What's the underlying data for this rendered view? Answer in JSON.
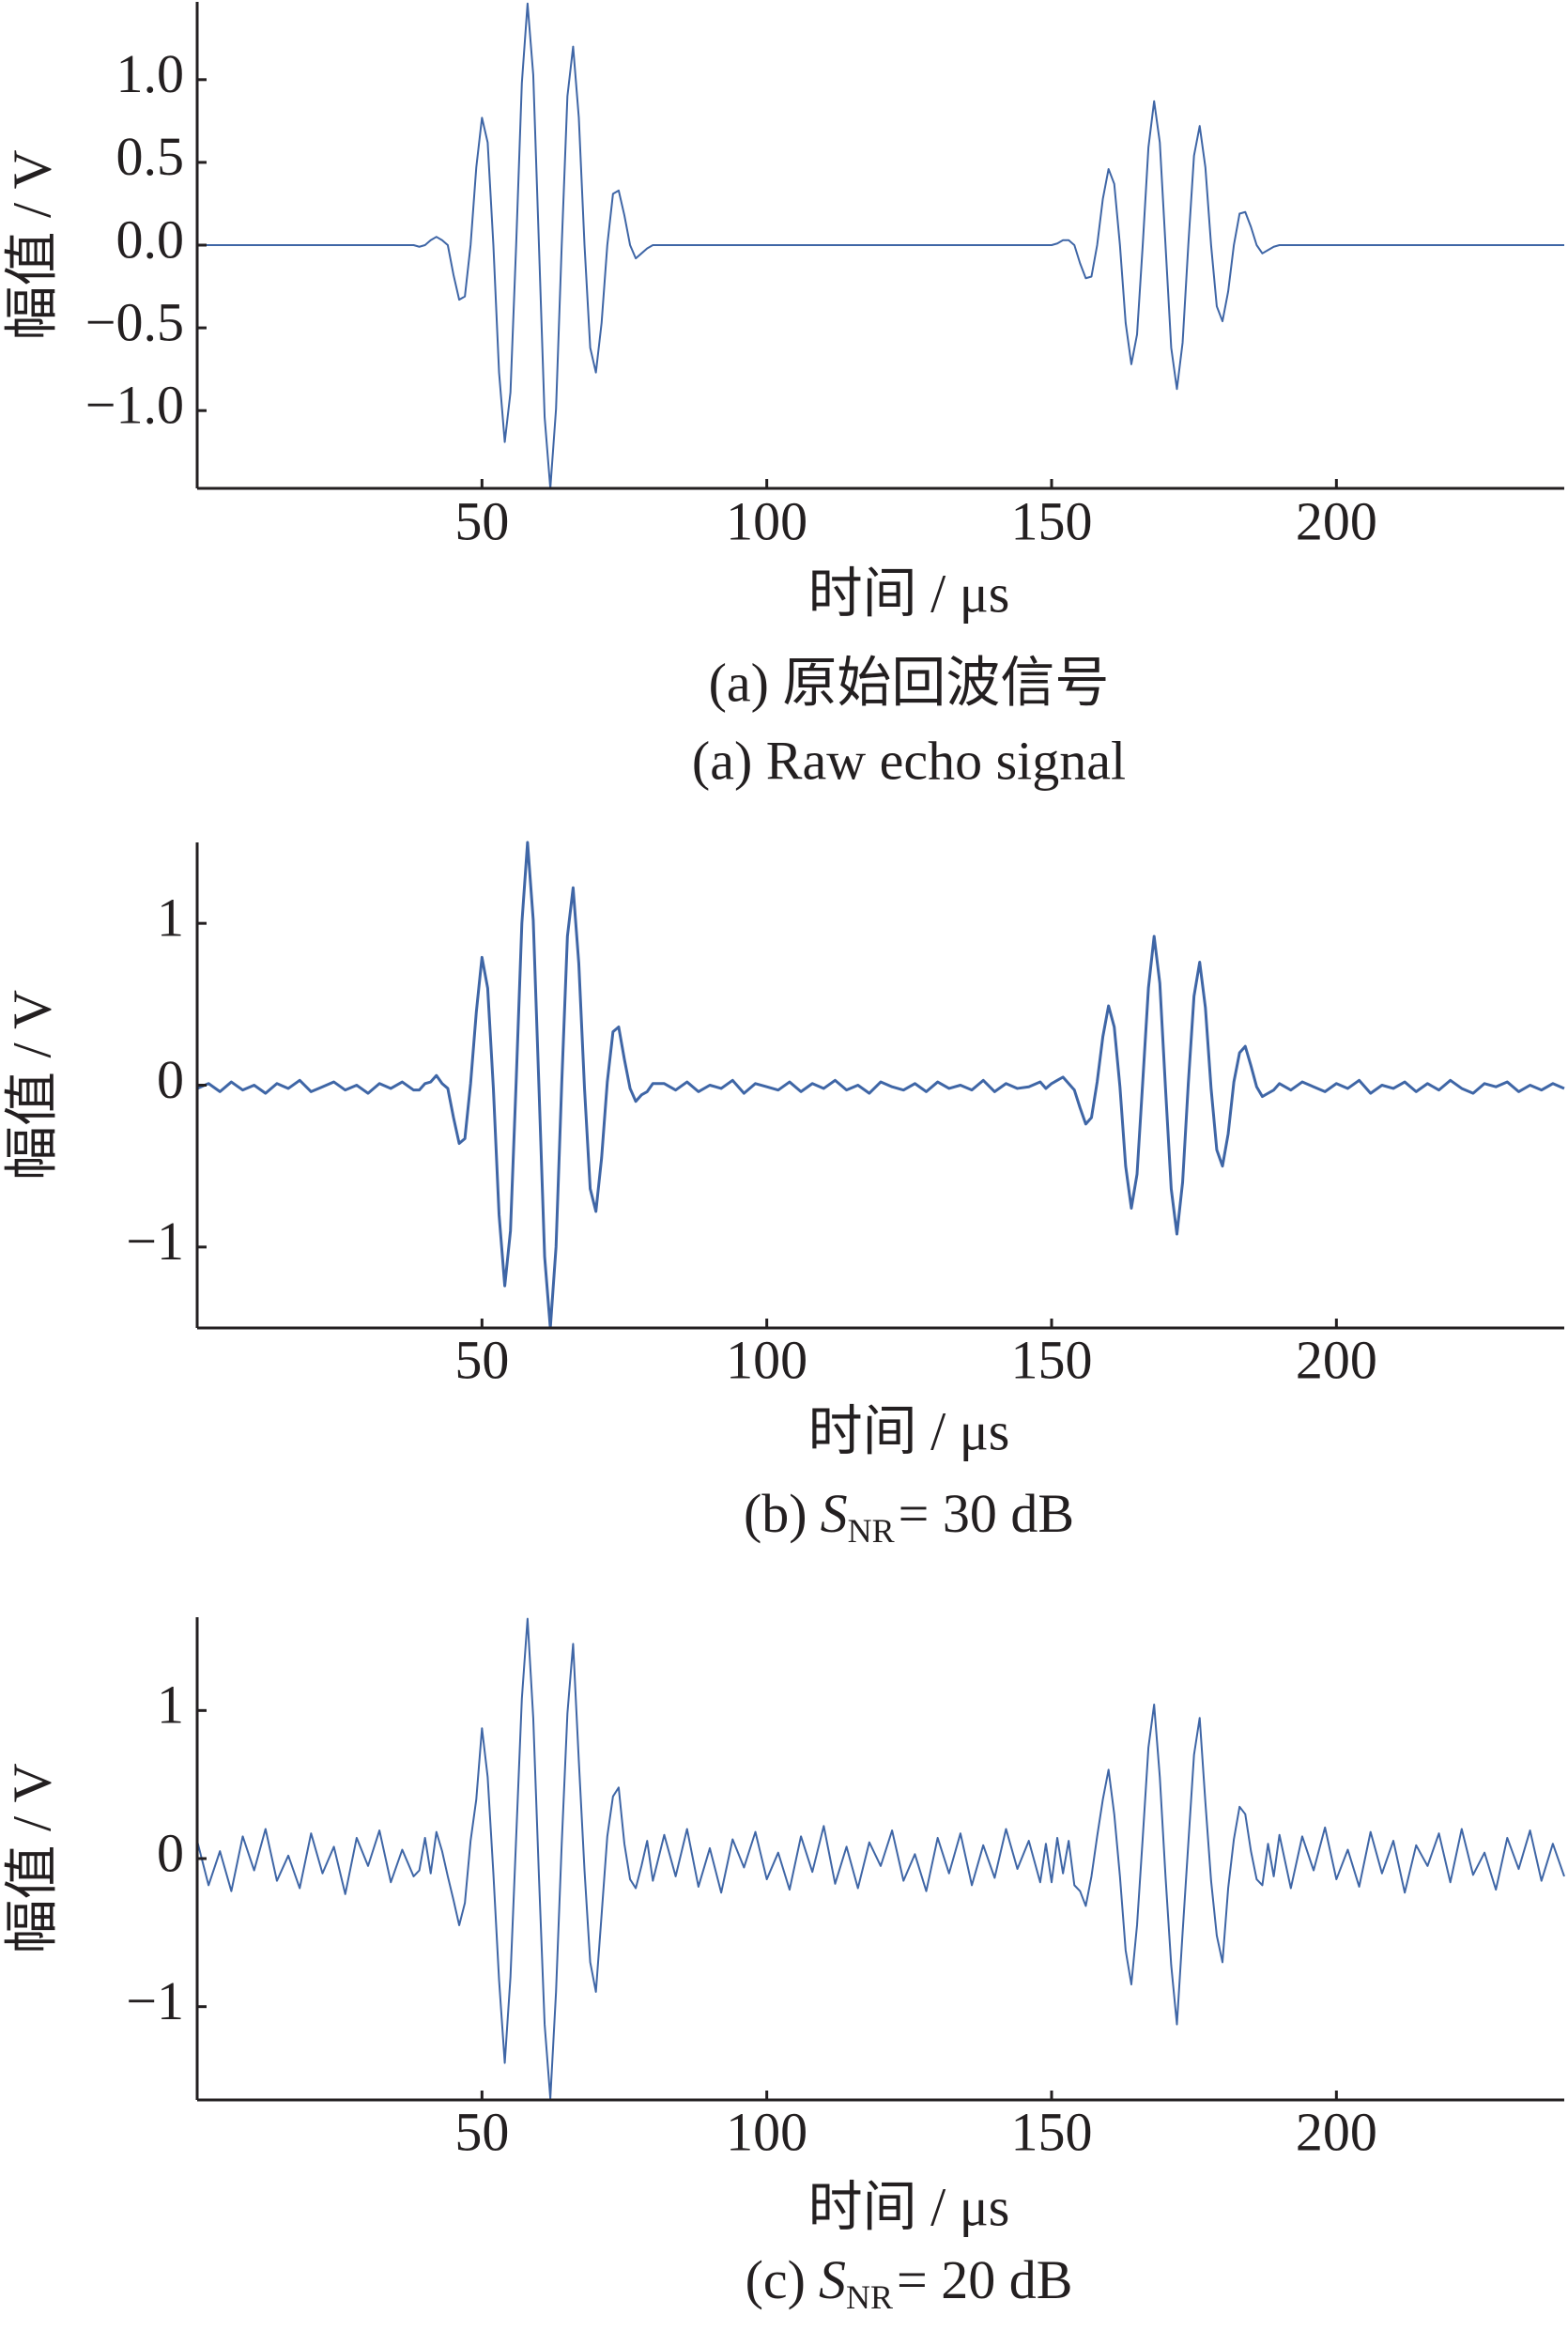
{
  "chart_data": [
    {
      "type": "line",
      "color": "#3f66a6",
      "line_width": 2,
      "y_label": "幅值 / V",
      "x_label": "时间 / μs",
      "caption_lines": [
        "(a) 原始回波信号",
        "(a) Raw echo signal"
      ],
      "xlim": [
        0,
        240
      ],
      "xticks": [
        50,
        100,
        150,
        200
      ],
      "ylim": [
        -1.47,
        1.47
      ],
      "yticks": [
        {
          "value": -1.0,
          "label": "−1.0"
        },
        {
          "value": -0.5,
          "label": "−0.5"
        },
        {
          "value": 0,
          "label": "0.0"
        },
        0.5,
        {
          "value": 1.0,
          "label": "1.0"
        }
      ],
      "x": [
        0,
        2,
        4,
        6,
        8,
        10,
        12,
        14,
        16,
        18,
        20,
        22,
        24,
        26,
        28,
        30,
        32,
        34,
        36,
        38,
        39,
        40,
        41,
        42,
        43,
        44,
        45,
        46,
        47,
        48,
        49,
        50,
        51,
        52,
        53,
        54,
        55,
        56,
        57,
        58,
        59,
        60,
        61,
        62,
        63,
        64,
        65,
        66,
        67,
        68,
        69,
        70,
        71,
        72,
        73,
        74,
        75,
        76,
        77,
        78,
        79,
        80,
        82,
        84,
        86,
        88,
        90,
        92,
        94,
        96,
        98,
        100,
        102,
        104,
        106,
        108,
        110,
        112,
        114,
        116,
        118,
        120,
        122,
        124,
        126,
        128,
        130,
        132,
        134,
        136,
        138,
        140,
        142,
        144,
        146,
        148,
        149,
        150,
        151,
        152,
        153,
        154,
        155,
        156,
        157,
        158,
        159,
        160,
        161,
        162,
        163,
        164,
        165,
        166,
        167,
        168,
        169,
        170,
        171,
        172,
        173,
        174,
        175,
        176,
        177,
        178,
        179,
        180,
        181,
        182,
        183,
        184,
        185,
        186,
        187,
        188,
        189,
        190,
        192,
        194,
        196,
        198,
        200,
        202,
        204,
        206,
        208,
        210,
        212,
        214,
        216,
        218,
        220,
        222,
        224,
        226,
        228,
        230,
        232,
        234,
        236,
        238,
        240
      ],
      "values": [
        0,
        0,
        0,
        0,
        0,
        0,
        0,
        0,
        0,
        0,
        0,
        0,
        0,
        0,
        0,
        0,
        0,
        0,
        0,
        0,
        -0.01,
        0,
        0.03,
        0.05,
        0.03,
        0,
        -0.18,
        -0.33,
        -0.31,
        0,
        0.47,
        0.77,
        0.62,
        0,
        -0.77,
        -1.19,
        -0.89,
        0,
        0.98,
        1.46,
        1.03,
        0,
        -1.04,
        -1.47,
        -0.99,
        0,
        0.9,
        1.2,
        0.77,
        0,
        -0.62,
        -0.77,
        -0.47,
        0,
        0.31,
        0.33,
        0.18,
        0,
        -0.08,
        -0.05,
        -0.02,
        0,
        0,
        0,
        0,
        0,
        0,
        0,
        0,
        0,
        0,
        0,
        0,
        0,
        0,
        0,
        0,
        0,
        0,
        0,
        0,
        0,
        0,
        0,
        0,
        0,
        0,
        0,
        0,
        0,
        0,
        0,
        0,
        0,
        0,
        0,
        0,
        0,
        0.01,
        0.03,
        0.03,
        0,
        -0.11,
        -0.2,
        -0.19,
        0,
        0.28,
        0.46,
        0.37,
        0,
        -0.47,
        -0.72,
        -0.54,
        0,
        0.59,
        0.87,
        0.62,
        0,
        -0.62,
        -0.87,
        -0.59,
        0,
        0.54,
        0.72,
        0.47,
        0,
        -0.37,
        -0.46,
        -0.28,
        0,
        0.19,
        0.2,
        0.11,
        0,
        -0.05,
        -0.03,
        -0.01,
        0,
        0,
        0,
        0,
        0,
        0,
        0,
        0,
        0,
        0,
        0,
        0,
        0,
        0,
        0,
        0,
        0,
        0,
        0,
        0,
        0,
        0,
        0,
        0,
        0,
        0
      ]
    },
    {
      "type": "line",
      "color": "#3f66a6",
      "line_width": 3,
      "y_label": "幅值 / V",
      "x_label": "时间 / μs",
      "caption": {
        "prefix": "(b)",
        "symbol": "S",
        "subscript": "NR",
        "suffix": "= 30 dB"
      },
      "xlim": [
        0,
        240
      ],
      "xticks": [
        50,
        100,
        150,
        200
      ],
      "ylim": [
        -1.5,
        1.5
      ],
      "yticks": [
        {
          "value": -1,
          "label": "−1"
        },
        0,
        1
      ],
      "x": [
        0,
        2,
        4,
        6,
        8,
        10,
        12,
        14,
        16,
        18,
        20,
        22,
        24,
        26,
        28,
        30,
        32,
        34,
        36,
        38,
        39,
        40,
        41,
        42,
        43,
        44,
        45,
        46,
        47,
        48,
        49,
        50,
        51,
        52,
        53,
        54,
        55,
        56,
        57,
        58,
        59,
        60,
        61,
        62,
        63,
        64,
        65,
        66,
        67,
        68,
        69,
        70,
        71,
        72,
        73,
        74,
        75,
        76,
        77,
        78,
        79,
        80,
        82,
        84,
        86,
        88,
        90,
        92,
        94,
        96,
        98,
        100,
        102,
        104,
        106,
        108,
        110,
        112,
        114,
        116,
        118,
        120,
        122,
        124,
        126,
        128,
        130,
        132,
        134,
        136,
        138,
        140,
        142,
        144,
        146,
        148,
        149,
        150,
        151,
        152,
        153,
        154,
        155,
        156,
        157,
        158,
        159,
        160,
        161,
        162,
        163,
        164,
        165,
        166,
        167,
        168,
        169,
        170,
        171,
        172,
        173,
        174,
        175,
        176,
        177,
        178,
        179,
        180,
        181,
        182,
        183,
        184,
        185,
        186,
        187,
        188,
        189,
        190,
        192,
        194,
        196,
        198,
        200,
        202,
        204,
        206,
        208,
        210,
        212,
        214,
        216,
        218,
        220,
        222,
        224,
        226,
        228,
        230,
        232,
        234,
        236,
        238,
        240
      ],
      "values": [
        -0.02,
        0.01,
        -0.04,
        0.02,
        -0.03,
        0,
        -0.05,
        0.01,
        -0.02,
        0.03,
        -0.04,
        -0.01,
        0.02,
        -0.03,
        0,
        -0.05,
        0.01,
        -0.02,
        0.02,
        -0.03,
        -0.03,
        0.01,
        0.02,
        0.06,
        0.01,
        -0.02,
        -0.2,
        -0.36,
        -0.33,
        0.01,
        0.45,
        0.79,
        0.6,
        -0.02,
        -0.8,
        -1.24,
        -0.9,
        0.02,
        1.0,
        1.5,
        1.02,
        -0.01,
        -1.06,
        -1.5,
        -1.0,
        0.01,
        0.92,
        1.22,
        0.75,
        -0.02,
        -0.64,
        -0.78,
        -0.45,
        0.02,
        0.33,
        0.36,
        0.16,
        -0.02,
        -0.1,
        -0.06,
        -0.04,
        0.01,
        0.01,
        -0.03,
        0.02,
        -0.04,
        0,
        -0.02,
        0.03,
        -0.05,
        0.01,
        -0.01,
        -0.03,
        0.02,
        -0.04,
        0.01,
        -0.02,
        0.03,
        -0.03,
        0,
        -0.05,
        0.02,
        -0.01,
        -0.03,
        0.01,
        -0.04,
        0.02,
        -0.02,
        0,
        -0.03,
        0.03,
        -0.04,
        0.01,
        -0.02,
        -0.01,
        0.02,
        -0.02,
        0.01,
        0.03,
        0.05,
        0.01,
        -0.03,
        -0.14,
        -0.24,
        -0.2,
        0.02,
        0.3,
        0.49,
        0.36,
        -0.01,
        -0.5,
        -0.76,
        -0.55,
        0.02,
        0.6,
        0.92,
        0.63,
        -0.02,
        -0.64,
        -0.92,
        -0.6,
        0.01,
        0.55,
        0.76,
        0.48,
        -0.02,
        -0.4,
        -0.5,
        -0.3,
        0.02,
        0.2,
        0.24,
        0.12,
        -0.01,
        -0.07,
        -0.05,
        -0.03,
        0.01,
        -0.03,
        0.02,
        -0.01,
        -0.04,
        0.01,
        -0.02,
        0.03,
        -0.05,
        0,
        -0.02,
        0.02,
        -0.04,
        0.01,
        -0.03,
        0.03,
        -0.02,
        -0.05,
        0.01,
        -0.01,
        0.02,
        -0.04,
        0,
        -0.03,
        0.01,
        -0.02
      ]
    },
    {
      "type": "line",
      "color": "#3f66a6",
      "line_width": 2,
      "y_label": "幅值 / V",
      "x_label": "时间 / μs",
      "caption": {
        "prefix": "(c)",
        "symbol": "S",
        "subscript": "NR",
        "suffix": "= 20 dB"
      },
      "xlim": [
        0,
        240
      ],
      "xticks": [
        50,
        100,
        150,
        200
      ],
      "ylim": [
        -1.63,
        1.63
      ],
      "yticks": [
        {
          "value": -1,
          "label": "−1"
        },
        0,
        1
      ],
      "x": [
        0,
        2,
        4,
        6,
        8,
        10,
        12,
        14,
        16,
        18,
        20,
        22,
        24,
        26,
        28,
        30,
        32,
        34,
        36,
        38,
        39,
        40,
        41,
        42,
        43,
        44,
        45,
        46,
        47,
        48,
        49,
        50,
        51,
        52,
        53,
        54,
        55,
        56,
        57,
        58,
        59,
        60,
        61,
        62,
        63,
        64,
        65,
        66,
        67,
        68,
        69,
        70,
        71,
        72,
        73,
        74,
        75,
        76,
        77,
        78,
        79,
        80,
        82,
        84,
        86,
        88,
        90,
        92,
        94,
        96,
        98,
        100,
        102,
        104,
        106,
        108,
        110,
        112,
        114,
        116,
        118,
        120,
        122,
        124,
        126,
        128,
        130,
        132,
        134,
        136,
        138,
        140,
        142,
        144,
        146,
        148,
        149,
        150,
        151,
        152,
        153,
        154,
        155,
        156,
        157,
        158,
        159,
        160,
        161,
        162,
        163,
        164,
        165,
        166,
        167,
        168,
        169,
        170,
        171,
        172,
        173,
        174,
        175,
        176,
        177,
        178,
        179,
        180,
        181,
        182,
        183,
        184,
        185,
        186,
        187,
        188,
        189,
        190,
        192,
        194,
        196,
        198,
        200,
        202,
        204,
        206,
        208,
        210,
        212,
        214,
        216,
        218,
        220,
        222,
        224,
        226,
        228,
        230,
        232,
        234,
        236,
        238,
        240
      ],
      "values": [
        0.12,
        -0.18,
        0.05,
        -0.22,
        0.15,
        -0.08,
        0.2,
        -0.15,
        0.02,
        -0.2,
        0.17,
        -0.1,
        0.08,
        -0.24,
        0.14,
        -0.05,
        0.19,
        -0.16,
        0.06,
        -0.12,
        -0.08,
        0.14,
        -0.1,
        0.18,
        0.05,
        -0.12,
        -0.28,
        -0.45,
        -0.3,
        0.12,
        0.4,
        0.88,
        0.55,
        -0.1,
        -0.82,
        -1.38,
        -0.8,
        0.14,
        1.08,
        1.62,
        0.95,
        -0.12,
        -1.12,
        -1.62,
        -0.9,
        0.1,
        0.98,
        1.45,
        0.66,
        -0.08,
        -0.7,
        -0.9,
        -0.38,
        0.15,
        0.42,
        0.48,
        0.1,
        -0.14,
        -0.2,
        -0.05,
        0.12,
        -0.15,
        0.16,
        -0.12,
        0.2,
        -0.19,
        0.07,
        -0.23,
        0.13,
        -0.06,
        0.18,
        -0.14,
        0.04,
        -0.21,
        0.15,
        -0.09,
        0.22,
        -0.17,
        0.08,
        -0.2,
        0.11,
        -0.05,
        0.19,
        -0.15,
        0.03,
        -0.22,
        0.14,
        -0.1,
        0.17,
        -0.18,
        0.09,
        -0.13,
        0.2,
        -0.07,
        0.12,
        -0.16,
        0.1,
        -0.16,
        0.14,
        -0.1,
        0.12,
        -0.18,
        -0.22,
        -0.32,
        -0.12,
        0.15,
        0.4,
        0.6,
        0.3,
        -0.12,
        -0.62,
        -0.85,
        -0.45,
        0.14,
        0.75,
        1.04,
        0.55,
        -0.12,
        -0.72,
        -1.12,
        -0.5,
        0.1,
        0.7,
        0.95,
        0.38,
        -0.15,
        -0.52,
        -0.7,
        -0.2,
        0.13,
        0.35,
        0.3,
        0.05,
        -0.14,
        -0.18,
        0.1,
        -0.12,
        0.16,
        -0.2,
        0.15,
        -0.08,
        0.21,
        -0.14,
        0.06,
        -0.19,
        0.18,
        -0.1,
        0.12,
        -0.23,
        0.09,
        -0.05,
        0.17,
        -0.16,
        0.2,
        -0.11,
        0.04,
        -0.21,
        0.14,
        -0.07,
        0.19,
        -0.15,
        0.1,
        -0.12
      ]
    }
  ]
}
